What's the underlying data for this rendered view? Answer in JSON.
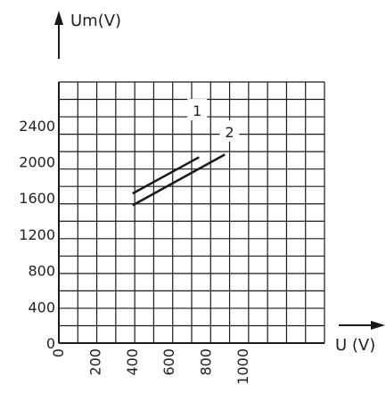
{
  "chart_data": {
    "type": "line",
    "xlabel": "U (V)",
    "ylabel": "Um(V)",
    "xlim": [
      0,
      1440
    ],
    "ylim": [
      0,
      2880
    ],
    "grid": true,
    "x_ticks": [
      {
        "value": 0,
        "label": "0"
      },
      {
        "value": 200,
        "label": "200"
      },
      {
        "value": 400,
        "label": "400"
      },
      {
        "value": 600,
        "label": "600"
      },
      {
        "value": 800,
        "label": "800"
      },
      {
        "value": 1000,
        "label": "1000"
      }
    ],
    "y_ticks": [
      {
        "value": 0,
        "label": "0"
      },
      {
        "value": 400,
        "label": "400"
      },
      {
        "value": 800,
        "label": "800"
      },
      {
        "value": 1200,
        "label": "1200"
      },
      {
        "value": 1600,
        "label": "1600"
      },
      {
        "value": 2000,
        "label": "2000"
      },
      {
        "value": 2400,
        "label": "2400"
      }
    ],
    "series": [
      {
        "name": "1",
        "points": [
          [
            400,
            1650
          ],
          [
            760,
            2050
          ]
        ]
      },
      {
        "name": "2",
        "points": [
          [
            400,
            1520
          ],
          [
            900,
            2080
          ]
        ]
      }
    ],
    "colors": {
      "line": "#1a1a1a",
      "grid": "#1a1a1a"
    }
  }
}
